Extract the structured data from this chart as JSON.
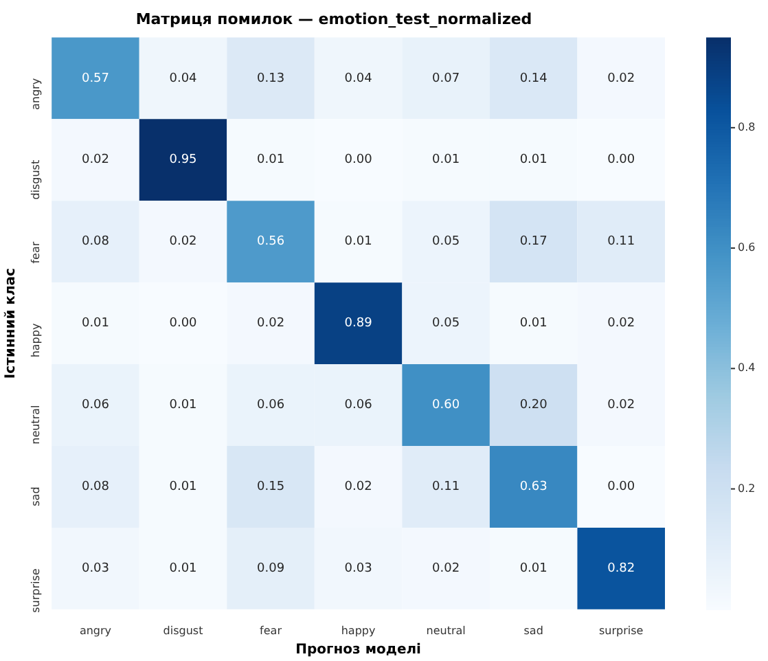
{
  "chart_data": {
    "type": "heatmap",
    "title": "Матриця помилок — emotion_test_normalized",
    "xlabel": "Прогноз моделі",
    "ylabel": "Істинний клас",
    "categories": [
      "angry",
      "disgust",
      "fear",
      "happy",
      "neutral",
      "sad",
      "surprise"
    ],
    "y_categories": [
      "angry",
      "disgust",
      "fear",
      "happy",
      "neutral",
      "sad",
      "surprise"
    ],
    "cells": [
      [
        0.57,
        0.04,
        0.13,
        0.04,
        0.07,
        0.14,
        0.02
      ],
      [
        0.02,
        0.95,
        0.01,
        0.0,
        0.01,
        0.01,
        0.0
      ],
      [
        0.08,
        0.02,
        0.56,
        0.01,
        0.05,
        0.17,
        0.11
      ],
      [
        0.01,
        0.0,
        0.02,
        0.89,
        0.05,
        0.01,
        0.02
      ],
      [
        0.06,
        0.01,
        0.06,
        0.06,
        0.6,
        0.2,
        0.02
      ],
      [
        0.08,
        0.01,
        0.15,
        0.02,
        0.11,
        0.63,
        0.0
      ],
      [
        0.03,
        0.01,
        0.09,
        0.03,
        0.02,
        0.01,
        0.82
      ]
    ],
    "cell_labels": [
      [
        "0.57",
        "0.04",
        "0.13",
        "0.04",
        "0.07",
        "0.14",
        "0.02"
      ],
      [
        "0.02",
        "0.95",
        "0.01",
        "0.00",
        "0.01",
        "0.01",
        "0.00"
      ],
      [
        "0.08",
        "0.02",
        "0.56",
        "0.01",
        "0.05",
        "0.17",
        "0.11"
      ],
      [
        "0.01",
        "0.00",
        "0.02",
        "0.89",
        "0.05",
        "0.01",
        "0.02"
      ],
      [
        "0.06",
        "0.01",
        "0.06",
        "0.06",
        "0.60",
        "0.20",
        "0.02"
      ],
      [
        "0.08",
        "0.01",
        "0.15",
        "0.02",
        "0.11",
        "0.63",
        "0.00"
      ],
      [
        "0.03",
        "0.01",
        "0.09",
        "0.03",
        "0.02",
        "0.01",
        "0.82"
      ]
    ],
    "clim": [
      0,
      0.95
    ],
    "cticks": [
      0.2,
      0.4,
      0.6,
      0.8
    ]
  }
}
